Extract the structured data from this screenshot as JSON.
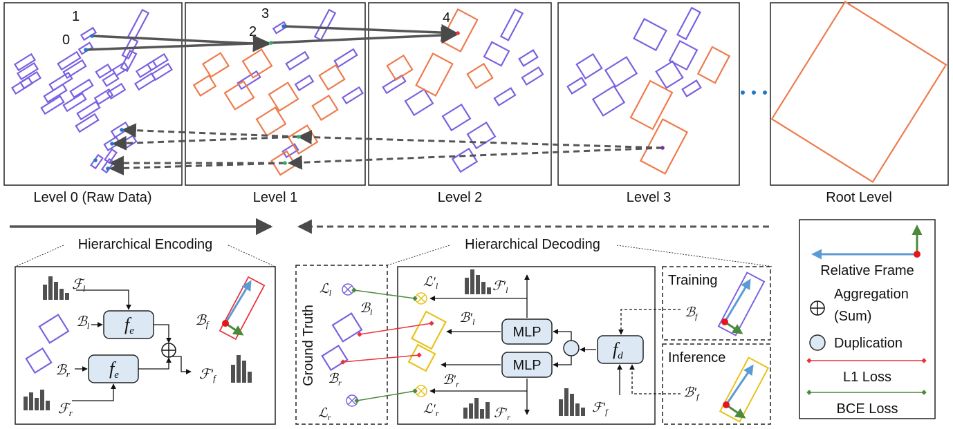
{
  "levels": {
    "level0_label": "Level 0 (Raw Data)",
    "level1_label": "Level 1",
    "level2_label": "Level 2",
    "level3_label": "Level 3",
    "root_label": "Root Level",
    "point_labels": [
      "0",
      "1",
      "2",
      "3",
      "4"
    ]
  },
  "encoding": {
    "title": "Hierarchical Encoding",
    "feature_left": "ℱ",
    "feature_left_sub": "l",
    "pose_left": "ℬ",
    "pose_left_sub": "l",
    "pose_right": "ℬ",
    "pose_right_sub": "r",
    "feature_right": "ℱ",
    "feature_right_sub": "r",
    "encoder": "f",
    "encoder_sub": "e",
    "pose_father": "ℬ",
    "pose_father_sub": "f",
    "feature_father": "ℱ′",
    "feature_father_sub": "f"
  },
  "decoding": {
    "title": "Hierarchical Decoding",
    "ground_truth": "Ground Truth",
    "mlp_top": "MLP",
    "mlp_bottom": "MLP",
    "decoder": "f",
    "decoder_sub": "d",
    "loss_l": "ℒ",
    "loss_l_sub": "l",
    "loss_r": "ℒ",
    "loss_r_sub": "r",
    "loss_l_pred": "ℒ′",
    "loss_r_pred": "ℒ′",
    "pose_l": "ℬ",
    "pose_r": "ℬ",
    "pose_l_pred": "ℬ′",
    "pose_r_pred": "ℬ′",
    "feat_l_pred": "ℱ′",
    "feat_r_pred": "ℱ′",
    "feat_f_pred": "ℱ′",
    "training": "Training",
    "inference": "Inference",
    "pose_f": "ℬ",
    "pose_f_pred": "ℬ′"
  },
  "legend": {
    "relative_frame": "Relative Frame",
    "aggregation_line1": "Aggregation",
    "aggregation_line2": "(Sum)",
    "duplication": "Duplication",
    "l1_loss": "L1 Loss",
    "bce_loss": "BCE Loss"
  },
  "colors": {
    "purple": "#7B61E0",
    "orange": "#EE7B4C",
    "yellow": "#E8C21A",
    "red": "#E8333A",
    "green": "#4A8A3A",
    "blue": "#5B9BD5",
    "gray": "#555555",
    "box_fill": "#DCE8F4"
  }
}
